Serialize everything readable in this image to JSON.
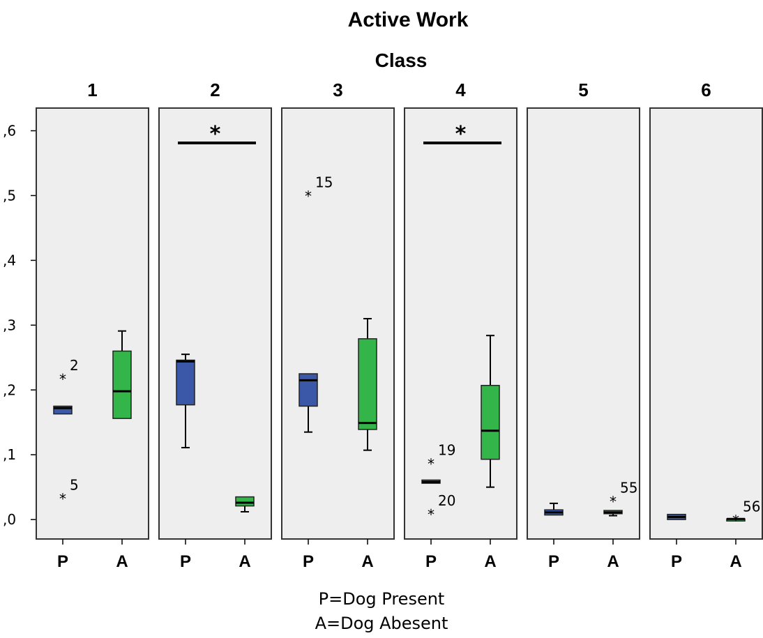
{
  "chart_data": {
    "type": "boxplot",
    "title": "Active Work",
    "subtitle": "Class",
    "ylim": [
      -0.03,
      0.635
    ],
    "y_ticks": [
      0.0,
      0.1,
      0.2,
      0.3,
      0.4,
      0.5,
      0.6
    ],
    "y_tick_labels": [
      ",0",
      ",1",
      ",2",
      ",3",
      ",4",
      ",5",
      ",6"
    ],
    "group_labels": [
      "P",
      "A"
    ],
    "colors": {
      "P": "#3b58a8",
      "A": "#33b54a",
      "panel_bg": "#eeeeee"
    },
    "panels": [
      {
        "label": "1",
        "significant": false,
        "boxes": [
          {
            "group": "P",
            "min": 0.163,
            "q1": 0.163,
            "median": 0.172,
            "q3": 0.175,
            "max": 0.175,
            "outliers": [
              {
                "value": 0.222,
                "label": "2"
              },
              {
                "value": 0.037,
                "label": "5"
              }
            ]
          },
          {
            "group": "A",
            "min": 0.156,
            "q1": 0.156,
            "median": 0.198,
            "q3": 0.26,
            "max": 0.291,
            "outliers": []
          }
        ]
      },
      {
        "label": "2",
        "significant": true,
        "sig_marker": "*",
        "boxes": [
          {
            "group": "P",
            "min": 0.111,
            "q1": 0.177,
            "median": 0.244,
            "q3": 0.246,
            "max": 0.255,
            "outliers": []
          },
          {
            "group": "A",
            "min": 0.012,
            "q1": 0.021,
            "median": 0.026,
            "q3": 0.035,
            "max": 0.035,
            "outliers": []
          }
        ]
      },
      {
        "label": "3",
        "significant": false,
        "boxes": [
          {
            "group": "P",
            "min": 0.135,
            "q1": 0.175,
            "median": 0.215,
            "q3": 0.225,
            "max": 0.225,
            "outliers": [
              {
                "value": 0.504,
                "label": "15"
              }
            ]
          },
          {
            "group": "A",
            "min": 0.107,
            "q1": 0.139,
            "median": 0.149,
            "q3": 0.279,
            "max": 0.31,
            "outliers": []
          }
        ]
      },
      {
        "label": "4",
        "significant": true,
        "sig_marker": "*",
        "boxes": [
          {
            "group": "P",
            "min": 0.056,
            "q1": 0.056,
            "median": 0.058,
            "q3": 0.061,
            "max": 0.061,
            "outliers": [
              {
                "value": 0.091,
                "label": "19"
              },
              {
                "value": 0.013,
                "label": "20"
              }
            ]
          },
          {
            "group": "A",
            "min": 0.05,
            "q1": 0.093,
            "median": 0.137,
            "q3": 0.207,
            "max": 0.284,
            "outliers": []
          }
        ]
      },
      {
        "label": "5",
        "significant": false,
        "boxes": [
          {
            "group": "P",
            "min": 0.007,
            "q1": 0.007,
            "median": 0.011,
            "q3": 0.015,
            "max": 0.025,
            "outliers": []
          },
          {
            "group": "A",
            "min": 0.006,
            "q1": 0.009,
            "median": 0.011,
            "q3": 0.014,
            "max": 0.014,
            "outliers": [
              {
                "value": 0.033,
                "label": "55"
              }
            ]
          }
        ]
      },
      {
        "label": "6",
        "significant": false,
        "boxes": [
          {
            "group": "P",
            "min": 0.0,
            "q1": 0.0,
            "median": 0.004,
            "q3": 0.008,
            "max": 0.008,
            "outliers": []
          },
          {
            "group": "A",
            "min": 0.0,
            "q1": 0.0,
            "median": 0.001,
            "q3": 0.001,
            "max": 0.001,
            "outliers": [
              {
                "value": 0.004,
                "label": "56"
              }
            ]
          }
        ]
      }
    ]
  },
  "legend": {
    "line1": "P=Dog Present",
    "line2": "A=Dog Abesent"
  }
}
